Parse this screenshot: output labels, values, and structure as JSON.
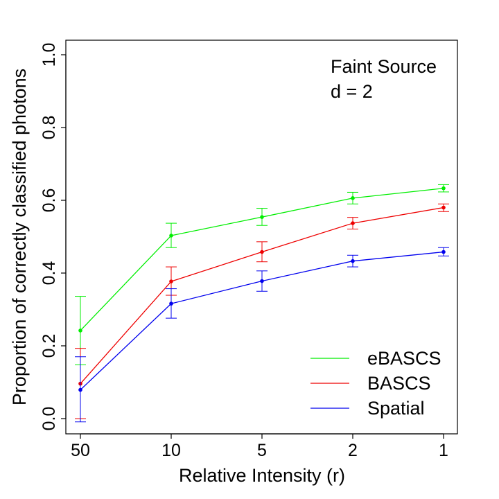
{
  "chart_data": {
    "type": "line",
    "title": "",
    "xlabel": "Relative Intensity (r)",
    "ylabel": "Proportion of correctly classified photons",
    "categories": [
      "50",
      "10",
      "5",
      "2",
      "1"
    ],
    "ylim": [
      0,
      1.0
    ],
    "y_ticks": [
      "0.0",
      "0.2",
      "0.4",
      "0.6",
      "0.8",
      "1.0"
    ],
    "grid": false,
    "legend_position": "bottom-right",
    "annotations": [
      "Faint Source",
      "d = 2"
    ],
    "series": [
      {
        "name": "eBASCS",
        "color": "#00ee00",
        "values": [
          0.242,
          0.503,
          0.554,
          0.606,
          0.633
        ],
        "err_low": [
          0.148,
          0.47,
          0.531,
          0.59,
          0.623
        ],
        "err_high": [
          0.336,
          0.537,
          0.578,
          0.622,
          0.643
        ]
      },
      {
        "name": "BASCS",
        "color": "#ee0000",
        "values": [
          0.096,
          0.377,
          0.458,
          0.537,
          0.58
        ],
        "err_low": [
          0.0,
          0.339,
          0.431,
          0.521,
          0.569
        ],
        "err_high": [
          0.193,
          0.417,
          0.486,
          0.553,
          0.59
        ]
      },
      {
        "name": "Spatial",
        "color": "#0000ee",
        "values": [
          0.079,
          0.316,
          0.378,
          0.433,
          0.458
        ],
        "err_low": [
          -0.009,
          0.276,
          0.35,
          0.417,
          0.447
        ],
        "err_high": [
          0.17,
          0.357,
          0.406,
          0.449,
          0.47
        ]
      }
    ]
  }
}
